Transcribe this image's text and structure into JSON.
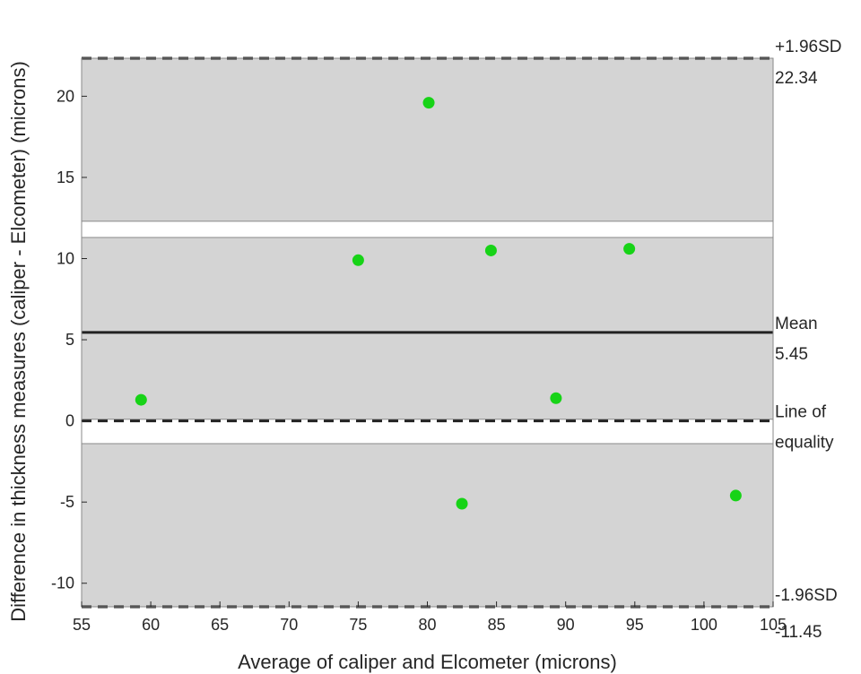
{
  "chart_data": {
    "type": "scatter",
    "title": "",
    "xlabel": "Average of caliper and Elcometer (microns)",
    "ylabel": "Difference in thickness measures (caliper - Elcometer) (microns)",
    "xlim": [
      55,
      105
    ],
    "ylim": [
      -11.45,
      22.34
    ],
    "xticks": [
      55,
      60,
      65,
      70,
      75,
      80,
      85,
      90,
      95,
      100,
      105
    ],
    "yticks": [
      -10,
      -5,
      0,
      5,
      10,
      15,
      20
    ],
    "grid": false,
    "points": [
      {
        "x": 59.3,
        "y": 1.3
      },
      {
        "x": 75.0,
        "y": 9.9
      },
      {
        "x": 80.1,
        "y": 19.6
      },
      {
        "x": 82.5,
        "y": -5.1
      },
      {
        "x": 84.6,
        "y": 10.5
      },
      {
        "x": 89.3,
        "y": 1.4
      },
      {
        "x": 94.6,
        "y": 10.6
      },
      {
        "x": 102.3,
        "y": -4.6
      }
    ],
    "point_color": "#17d317",
    "bands": [
      {
        "y_low": 12.3,
        "y_high": 22.34
      },
      {
        "y_low": 0.1,
        "y_high": 11.3
      },
      {
        "y_low": -11.45,
        "y_high": -1.4
      }
    ],
    "band_color": "#d4d4d4",
    "reference_lines": [
      {
        "label": "+1.96SD",
        "value_label": "22.34",
        "y": 22.34,
        "style": "dashed"
      },
      {
        "label": "Mean",
        "value_label": "5.45",
        "y": 5.45,
        "style": "solid"
      },
      {
        "label": "Line of",
        "value_label": "equality",
        "y": 0,
        "style": "dashed"
      },
      {
        "label": "-1.96SD",
        "value_label": "-11.45",
        "y": -11.45,
        "style": "dashed"
      }
    ]
  }
}
